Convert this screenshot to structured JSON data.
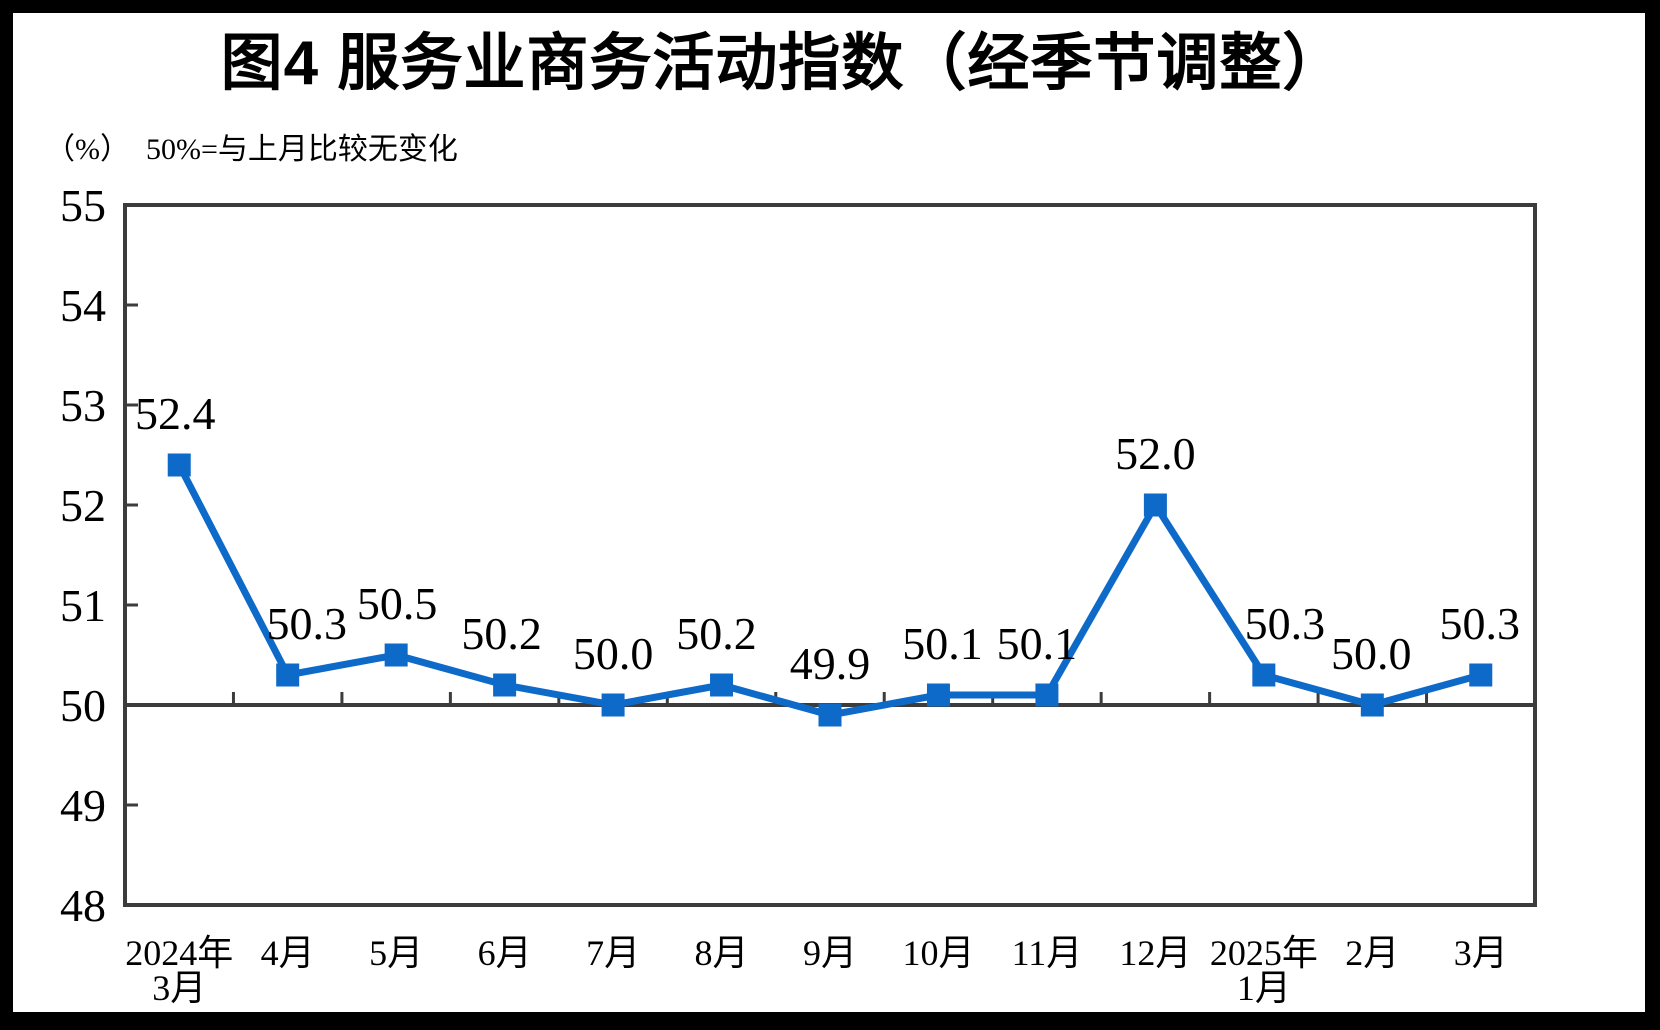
{
  "chart_data": {
    "type": "line",
    "title": "图4 服务业商务活动指数（经季节调整）",
    "unit_label": "（%）",
    "reference_note": "50%=与上月比较无变化",
    "categories": [
      [
        "2024年",
        "3月"
      ],
      [
        "4月"
      ],
      [
        "5月"
      ],
      [
        "6月"
      ],
      [
        "7月"
      ],
      [
        "8月"
      ],
      [
        "9月"
      ],
      [
        "10月"
      ],
      [
        "11月"
      ],
      [
        "12月"
      ],
      [
        "2025年",
        "1月"
      ],
      [
        "2月"
      ],
      [
        "3月"
      ]
    ],
    "series": [
      {
        "name": "服务业商务活动指数（经季节调整）",
        "values": [
          52.4,
          50.3,
          50.5,
          50.2,
          50.0,
          50.2,
          49.9,
          50.1,
          50.1,
          52.0,
          50.3,
          50.0,
          50.3
        ]
      }
    ],
    "data_labels": [
      "52.4",
      "50.3",
      "50.5",
      "50.2",
      "50.0",
      "50.2",
      "49.9",
      "50.1",
      "50.1",
      "52.0",
      "50.3",
      "50.0",
      "50.3"
    ],
    "ylim": [
      48,
      55
    ],
    "y_ticks": [
      48,
      49,
      50,
      51,
      52,
      53,
      54,
      55
    ],
    "reference_line": 50,
    "grid": false,
    "legend": "none",
    "xlabel": "",
    "ylabel": "（%）",
    "colors": {
      "line": "#0E6AC8",
      "marker": "#0E6AC8",
      "axis": "#3C3C3C",
      "text": "#000000",
      "background": "#FFFFFF",
      "frame": "#000000"
    },
    "layout_hints": {
      "label_dx": [
        -4,
        19,
        1,
        -3,
        0,
        -5,
        0,
        4,
        -10,
        0,
        21,
        -1,
        -1
      ],
      "label_dy": -36
    }
  }
}
